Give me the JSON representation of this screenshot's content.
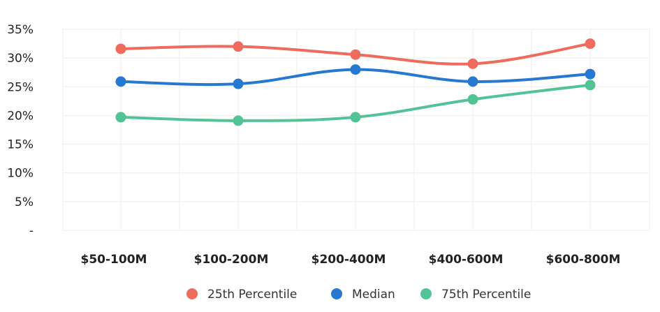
{
  "chart_data": {
    "type": "line",
    "categories": [
      "$50-100M",
      "$100-200M",
      "$200-400M",
      "$400-600M",
      "$600-800M"
    ],
    "y_tick_labels": [
      "-",
      "5%",
      "10%",
      "15%",
      "20%",
      "25%",
      "30%",
      "35%"
    ],
    "ylim": [
      0,
      35
    ],
    "y_tick_values": [
      0,
      5,
      10,
      15,
      20,
      25,
      30,
      35
    ],
    "grid": true,
    "legend_position": "bottom",
    "series": [
      {
        "name": "25th Percentile",
        "color": "#EE6B5E",
        "values": [
          31.6,
          32.0,
          30.6,
          29.0,
          32.5
        ]
      },
      {
        "name": "Median",
        "color": "#2778D0",
        "values": [
          25.9,
          25.5,
          28.0,
          25.9,
          27.2
        ]
      },
      {
        "name": "75th Percentile",
        "color": "#52C396",
        "values": [
          19.7,
          19.1,
          19.7,
          22.8,
          25.3
        ]
      }
    ]
  }
}
